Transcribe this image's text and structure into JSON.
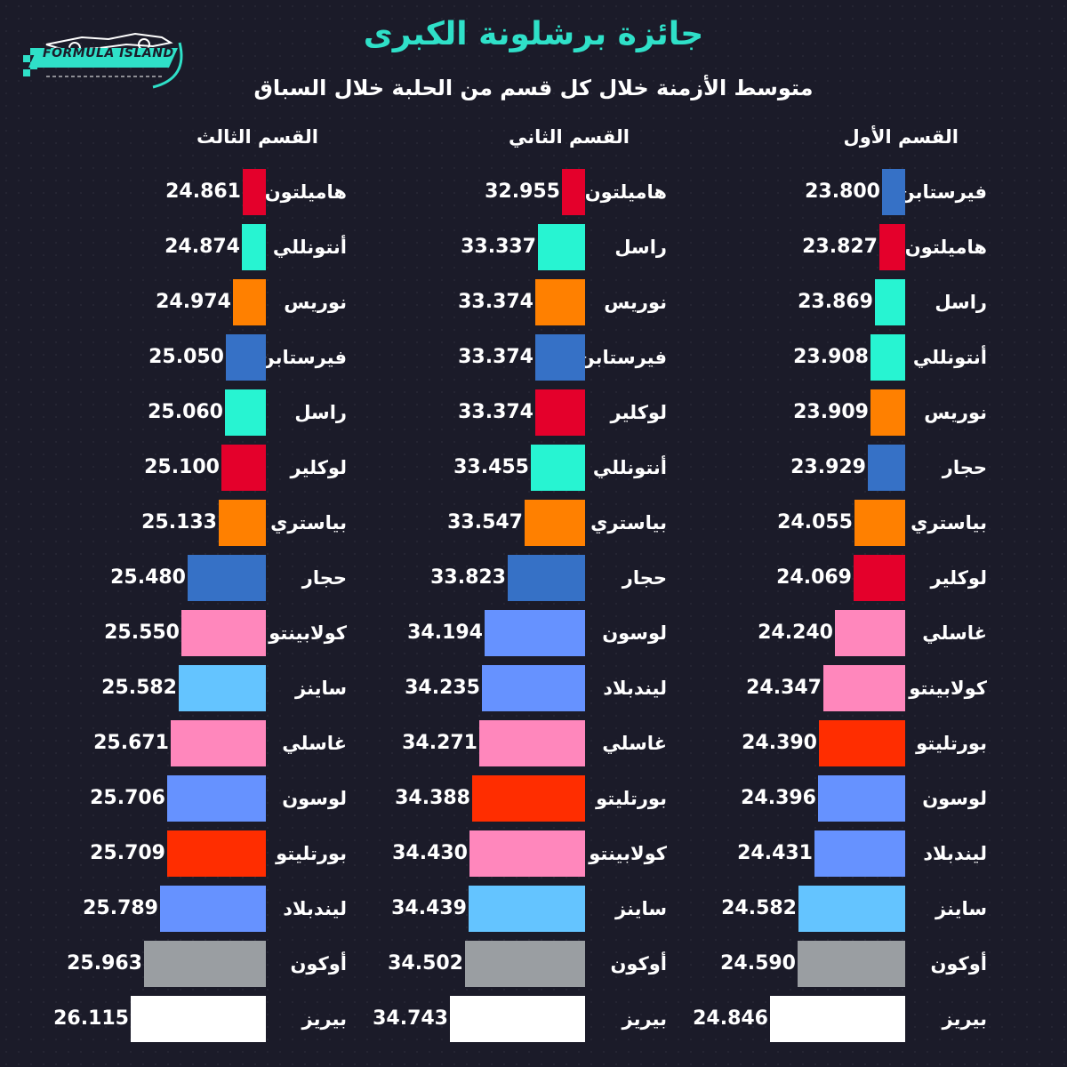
{
  "logo": {
    "text": "FORMULA ISLAND"
  },
  "title": "جائزة برشلونة الكبرى",
  "subtitle": "متوسط الأزمنة خلال كل قسم من الحلبة خلال السباق",
  "colors": {
    "hamilton": "#e4002b",
    "russell": "#27f4d2",
    "antonelli": "#27f4d2",
    "norris": "#ff8000",
    "piastri": "#ff8000",
    "verstappen": "#3671c6",
    "hadjar": "#3671c6",
    "leclerc": "#e4002b",
    "gasly": "#ff87bc",
    "colapinto": "#ff87bc",
    "bortoleto": "#ff2d00",
    "lawson": "#6692ff",
    "lindblad": "#6692ff",
    "sainz": "#64c4ff",
    "ocon": "#9a9ea2",
    "bearman": "#ffffff"
  },
  "sections": [
    {
      "title": "القسم الأول",
      "rows": [
        {
          "driver": "فيرستابن",
          "time": "23.800",
          "color": "#3671c6"
        },
        {
          "driver": "هاميلتون",
          "time": "23.827",
          "color": "#e4002b"
        },
        {
          "driver": "راسل",
          "time": "23.869",
          "color": "#27f4d2"
        },
        {
          "driver": "أنتونللي",
          "time": "23.908",
          "color": "#27f4d2"
        },
        {
          "driver": "نوريس",
          "time": "23.909",
          "color": "#ff8000"
        },
        {
          "driver": "حجار",
          "time": "23.929",
          "color": "#3671c6"
        },
        {
          "driver": "بياستري",
          "time": "24.055",
          "color": "#ff8000"
        },
        {
          "driver": "لوكلير",
          "time": "24.069",
          "color": "#e4002b"
        },
        {
          "driver": "غاسلي",
          "time": "24.240",
          "color": "#ff87bc"
        },
        {
          "driver": "كولابينتو",
          "time": "24.347",
          "color": "#ff87bc"
        },
        {
          "driver": "بورتليتو",
          "time": "24.390",
          "color": "#ff2d00"
        },
        {
          "driver": "لوسون",
          "time": "24.396",
          "color": "#6692ff"
        },
        {
          "driver": "ليندبلاد",
          "time": "24.431",
          "color": "#6692ff"
        },
        {
          "driver": "ساينز",
          "time": "24.582",
          "color": "#64c4ff"
        },
        {
          "driver": "أوكون",
          "time": "24.590",
          "color": "#9a9ea2"
        },
        {
          "driver": "بيريز",
          "time": "24.846",
          "color": "#ffffff"
        }
      ]
    },
    {
      "title": "القسم الثاني",
      "rows": [
        {
          "driver": "هاميلتون",
          "time": "32.955",
          "color": "#e4002b"
        },
        {
          "driver": "راسل",
          "time": "33.337",
          "color": "#27f4d2"
        },
        {
          "driver": "نوريس",
          "time": "33.374",
          "color": "#ff8000"
        },
        {
          "driver": "فيرستابن",
          "time": "33.374",
          "color": "#3671c6"
        },
        {
          "driver": "لوكلير",
          "time": "33.374",
          "color": "#e4002b"
        },
        {
          "driver": "أنتونللي",
          "time": "33.455",
          "color": "#27f4d2"
        },
        {
          "driver": "بياستري",
          "time": "33.547",
          "color": "#ff8000"
        },
        {
          "driver": "حجار",
          "time": "33.823",
          "color": "#3671c6"
        },
        {
          "driver": "لوسون",
          "time": "34.194",
          "color": "#6692ff"
        },
        {
          "driver": "ليندبلاد",
          "time": "34.235",
          "color": "#6692ff"
        },
        {
          "driver": "غاسلي",
          "time": "34.271",
          "color": "#ff87bc"
        },
        {
          "driver": "بورتليتو",
          "time": "34.388",
          "color": "#ff2d00"
        },
        {
          "driver": "كولابينتو",
          "time": "34.430",
          "color": "#ff87bc"
        },
        {
          "driver": "ساينز",
          "time": "34.439",
          "color": "#64c4ff"
        },
        {
          "driver": "أوكون",
          "time": "34.502",
          "color": "#9a9ea2"
        },
        {
          "driver": "بيريز",
          "time": "34.743",
          "color": "#ffffff"
        }
      ]
    },
    {
      "title": "القسم الثالث",
      "rows": [
        {
          "driver": "هاميلتون",
          "time": "24.861",
          "color": "#e4002b"
        },
        {
          "driver": "أنتونللي",
          "time": "24.874",
          "color": "#27f4d2"
        },
        {
          "driver": "نوريس",
          "time": "24.974",
          "color": "#ff8000"
        },
        {
          "driver": "فيرستابن",
          "time": "25.050",
          "color": "#3671c6"
        },
        {
          "driver": "راسل",
          "time": "25.060",
          "color": "#27f4d2"
        },
        {
          "driver": "لوكلير",
          "time": "25.100",
          "color": "#e4002b"
        },
        {
          "driver": "بياستري",
          "time": "25.133",
          "color": "#ff8000"
        },
        {
          "driver": "حجار",
          "time": "25.480",
          "color": "#3671c6"
        },
        {
          "driver": "كولابينتو",
          "time": "25.550",
          "color": "#ff87bc"
        },
        {
          "driver": "ساينز",
          "time": "25.582",
          "color": "#64c4ff"
        },
        {
          "driver": "غاسلي",
          "time": "25.671",
          "color": "#ff87bc"
        },
        {
          "driver": "لوسون",
          "time": "25.706",
          "color": "#6692ff"
        },
        {
          "driver": "بورتليتو",
          "time": "25.709",
          "color": "#ff2d00"
        },
        {
          "driver": "ليندبلاد",
          "time": "25.789",
          "color": "#6692ff"
        },
        {
          "driver": "أوكون",
          "time": "25.963",
          "color": "#9a9ea2"
        },
        {
          "driver": "بيريز",
          "time": "26.115",
          "color": "#ffffff"
        }
      ]
    }
  ]
}
